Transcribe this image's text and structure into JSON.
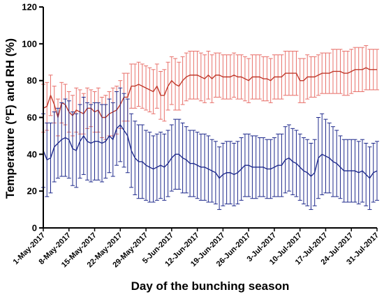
{
  "chart_data": {
    "type": "line",
    "title": "",
    "xlabel": "Day of the bunching season",
    "ylabel": "Temperature (°F) and RH (%)",
    "ylim": [
      0,
      120
    ],
    "yticks": [
      "0",
      "20",
      "40",
      "60",
      "80",
      "100",
      "120"
    ],
    "x_tick_labels": [
      "1-May-2017",
      "8-May-2017",
      "15-May-2017",
      "22-May-2017",
      "29-May-2017",
      "5-Jun-2017",
      "12-Jun-2017",
      "19-Jun-2017",
      "26-Jun-2017",
      "3-Jul-2017",
      "10-Jul-2017",
      "17-Jul-2017",
      "24-Jul-2017",
      "31-Jul-2017"
    ],
    "x_range": [
      "1-May-2017",
      "31-Jul-2017"
    ],
    "grid": false,
    "legend": "none",
    "series": [
      {
        "color": "#c0392b",
        "error_bar_color": "#e8706a",
        "values": [
          65,
          66,
          72,
          67,
          60,
          68,
          67,
          63,
          61,
          64,
          63,
          62,
          65,
          65,
          63,
          64,
          60,
          60,
          62,
          63,
          64,
          67,
          71,
          71,
          77,
          77,
          78,
          77,
          76,
          75,
          74,
          77,
          72,
          72,
          77,
          80,
          78,
          77,
          80,
          82,
          83,
          83,
          83,
          82,
          81,
          83,
          81,
          83,
          83,
          82,
          82,
          82,
          83,
          82,
          82,
          81,
          80,
          82,
          82,
          82,
          81,
          81,
          80,
          82,
          82,
          82,
          84,
          84,
          84,
          84,
          80,
          80,
          82,
          82,
          82,
          83,
          84,
          84,
          84,
          85,
          85,
          85,
          84,
          84,
          85,
          86,
          86,
          86,
          87,
          86,
          86,
          86
        ],
        "error": [
          13,
          13,
          11,
          10,
          10,
          11,
          11,
          11,
          11,
          12,
          12,
          11,
          11,
          10,
          11,
          12,
          11,
          12,
          12,
          13,
          13,
          13,
          13,
          13,
          12,
          12,
          12,
          12,
          12,
          12,
          12,
          12,
          13,
          14,
          13,
          13,
          14,
          13,
          13,
          13,
          13,
          13,
          13,
          13,
          13,
          13,
          13,
          12,
          12,
          12,
          12,
          12,
          12,
          12,
          12,
          12,
          12,
          12,
          12,
          12,
          12,
          12,
          12,
          12,
          12,
          12,
          12,
          12,
          12,
          12,
          12,
          12,
          12,
          11,
          11,
          11,
          11,
          11,
          11,
          12,
          12,
          12,
          12,
          12,
          12,
          12,
          12,
          12,
          12,
          11,
          11,
          11
        ]
      },
      {
        "color": "#1f2a8c",
        "error_bar_color": "#1f2a8c",
        "values": [
          42,
          37,
          38,
          44,
          46,
          48,
          49,
          48,
          43,
          42,
          47,
          50,
          47,
          46,
          47,
          47,
          46,
          47,
          50,
          48,
          54,
          56,
          53,
          50,
          42,
          38,
          36,
          36,
          34,
          33,
          32,
          33,
          34,
          33,
          35,
          38,
          40,
          40,
          38,
          37,
          35,
          35,
          34,
          33,
          33,
          32,
          31,
          30,
          27,
          29,
          30,
          30,
          29,
          30,
          32,
          34,
          34,
          33,
          33,
          33,
          33,
          32,
          32,
          33,
          34,
          34,
          37,
          38,
          36,
          35,
          33,
          31,
          30,
          28,
          30,
          38,
          40,
          39,
          38,
          36,
          35,
          33,
          31,
          31,
          31,
          31,
          30,
          31,
          29,
          27,
          30,
          31
        ],
        "error": [
          20,
          20,
          19,
          19,
          19,
          20,
          21,
          21,
          20,
          20,
          20,
          21,
          21,
          21,
          21,
          21,
          21,
          20,
          20,
          20,
          20,
          20,
          20,
          20,
          20,
          20,
          20,
          20,
          19,
          19,
          18,
          18,
          18,
          18,
          18,
          18,
          19,
          19,
          19,
          18,
          18,
          18,
          18,
          18,
          18,
          18,
          17,
          17,
          17,
          17,
          17,
          17,
          17,
          17,
          17,
          17,
          17,
          17,
          17,
          16,
          16,
          16,
          16,
          16,
          17,
          17,
          18,
          18,
          18,
          18,
          18,
          18,
          18,
          18,
          18,
          22,
          22,
          20,
          19,
          19,
          18,
          17,
          17,
          17,
          17,
          17,
          17,
          17,
          17,
          17,
          16,
          16
        ]
      }
    ]
  }
}
